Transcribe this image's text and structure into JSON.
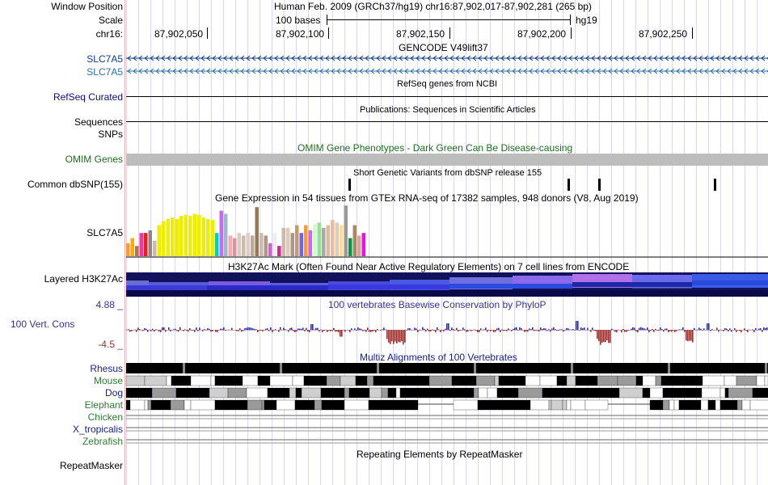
{
  "header": {
    "window_position_label": "Window Position",
    "scale_label": "Scale",
    "chrom_label": "chr16:",
    "assembly_text": "Human Feb. 2009 (GRCh37/hg19)   chr16:87,902,017-87,902,281 (265 bp)",
    "scale_bar_text": "100 bases",
    "scale_db": "hg19",
    "ruler_ticks": [
      "87,902,050",
      "87,902,100",
      "87,902,150",
      "87,902,200",
      "87,902,250"
    ]
  },
  "tracks": {
    "gencode": {
      "title": "GENCODE V49lift37",
      "items": [
        "SLC7A5",
        "SLC7A5"
      ]
    },
    "refseq": {
      "title": "RefSeq genes from NCBI",
      "label": "RefSeq Curated"
    },
    "publications": {
      "title": "Publications: Sequences in Scientific Articles",
      "label": "Sequences"
    },
    "snps": {
      "label": "SNPs"
    },
    "omim": {
      "title": "OMIM Gene Phenotypes - Dark Green Can Be Disease-causing",
      "label": "OMIM Genes",
      "color": "#1e6e1e"
    },
    "dbsnp": {
      "title": "Short Genetic Variants from dbSNP release 155",
      "label": "Common dbSNP(155)"
    },
    "gtex": {
      "title": "Gene Expression in 54 tissues from GTEx RNA-seq of 17382 samples, 948 donors (V8, Aug 2019)",
      "label": "SLC7A5",
      "bar_heights": [
        0.25,
        0.35,
        0.2,
        0.45,
        0.45,
        0.5,
        0.3,
        0.6,
        0.68,
        0.72,
        0.75,
        0.72,
        0.78,
        0.8,
        0.78,
        0.82,
        0.8,
        0.75,
        0.72,
        0.7,
        0.45,
        0.88,
        0.82,
        0.4,
        0.35,
        0.45,
        0.4,
        0.45,
        0.4,
        0.95,
        0.45,
        0.4,
        0.25,
        0.45,
        0.2,
        0.55,
        0.55,
        0.45,
        0.6,
        0.45,
        0.6,
        0.5,
        0.62,
        0.65,
        0.55,
        0.6,
        0.7,
        0.65,
        0.6,
        0.98,
        0.35,
        0.6,
        0.4,
        0.45
      ],
      "bar_colors": [
        "#ff9933",
        "#ffaa00",
        "#aa7755",
        "#ff3399",
        "#dd2222",
        "#888888",
        "#ccbbaa",
        "#eeee00",
        "#eeee00",
        "#eeee00",
        "#eeee00",
        "#eeee00",
        "#eeee00",
        "#eeee00",
        "#eeee00",
        "#eeee00",
        "#eeee00",
        "#eeee00",
        "#eeee00",
        "#eeee00",
        "#00cccc",
        "#cc66ff",
        "#99bbcc",
        "#ffaaaa",
        "#cc99aa",
        "#ddccbb",
        "#ccbbaa",
        "#ddcccc",
        "#bbaa99",
        "#997755",
        "#ccbbaa",
        "#aa9988",
        "#cc66cc",
        "#eeeeee",
        "#dd2288",
        "#ccbbaa",
        "#ddccbb",
        "#aa9988",
        "#cc9966",
        "#6666ff",
        "#ff9933",
        "#cc66ff",
        "#ccffcc",
        "#99dd99",
        "#aaaaaa",
        "#ddbb99",
        "#eebb99",
        "#ddccbb",
        "#ffdd99",
        "#999999",
        "#009944",
        "#aa8866",
        "#ccaa99",
        "#ff00ff"
      ]
    },
    "h3k27ac": {
      "title": "H3K27Ac Mark (Often Found Near Active Regulatory Elements) on 7 cell lines from ENCODE",
      "label": "Layered H3K27Ac"
    },
    "conservation": {
      "title": "100 vertebrates Basewise Conservation by PhyloP",
      "label": "100 Vert. Cons",
      "ymax": "4.88 _",
      "ymin": "-4.5 _",
      "pos_color": "#33338f",
      "neg_color": "#8f3333"
    },
    "multiz": {
      "title": "Multiz Alignments of 100 Vertebrates",
      "species": [
        {
          "name": "Rhesus",
          "color": "#1a237e"
        },
        {
          "name": "Mouse",
          "color": "#2e7d32"
        },
        {
          "name": "Dog",
          "color": "#1a237e"
        },
        {
          "name": "Elephant",
          "color": "#2e7d32"
        },
        {
          "name": "Chicken",
          "color": "#2e7d32"
        },
        {
          "name": "X_tropicalis",
          "color": "#1a237e"
        },
        {
          "name": "Zebrafish",
          "color": "#2e7d32"
        }
      ]
    },
    "repeatmasker": {
      "title": "Repeating Elements by RepeatMasker",
      "label": "RepeatMasker"
    }
  },
  "colors": {
    "gencode_blue": "#0c3c8c",
    "gencode_light": "#2a6fb0",
    "refseq_label": "#0c0c78",
    "divider": "#e6b0b0"
  }
}
